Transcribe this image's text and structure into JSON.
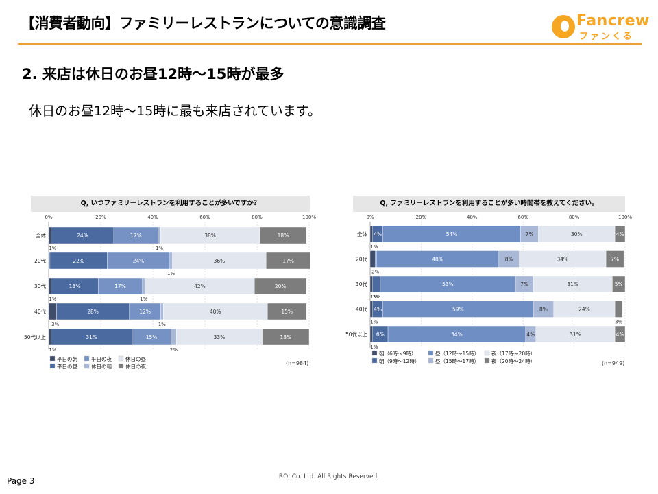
{
  "header": {
    "title": "【消費者動向】ファミリーレストランについての意識調査",
    "logo_text": "Fancrew",
    "logo_sub": "ファンくる"
  },
  "section": {
    "title": "2.  来店は休日のお昼12時～15時が最多",
    "lead": "休日のお昼12時～15時に最も来店されています。"
  },
  "footer": {
    "page": "Page 3",
    "copyright": "ROI Co. Ltd. All Rights Reserved."
  },
  "chart_data": [
    {
      "type": "bar",
      "orientation": "horizontal-stacked-100",
      "title": "Q, いつファミリーレストランを利用することが多いですか？",
      "categories": [
        "全体",
        "20代",
        "30代",
        "40代",
        "50代以上"
      ],
      "xlim": [
        0,
        100
      ],
      "x_ticks": [
        "0%",
        "20%",
        "40%",
        "60%",
        "80%",
        "100%"
      ],
      "sample": "(n=984)",
      "series": [
        {
          "name": "平日の朝",
          "color": "#3f4d6b",
          "values": [
            1,
            0.5,
            1,
            3,
            1
          ]
        },
        {
          "name": "平日の昼",
          "color": "#4a6aa0",
          "values": [
            24,
            22,
            18,
            28,
            31
          ]
        },
        {
          "name": "平日の夜",
          "color": "#7692c4",
          "values": [
            17,
            24,
            17,
            12,
            15
          ]
        },
        {
          "name": "休日の朝",
          "color": "#a9b8d6",
          "values": [
            1,
            1,
            1,
            1,
            2
          ]
        },
        {
          "name": "休日の昼",
          "color": "#e2e6ef",
          "values": [
            38,
            36,
            42,
            40,
            33
          ]
        },
        {
          "name": "休日の夜",
          "color": "#7d7d7d",
          "values": [
            18,
            17,
            20,
            15,
            18
          ]
        }
      ],
      "labels": [
        [
          "1%",
          "24%",
          "17%",
          "1%",
          "38%",
          "18%"
        ],
        [
          "",
          "22%",
          "24%",
          "1%",
          "36%",
          "17%"
        ],
        [
          "1%",
          "18%",
          "17%",
          "1%",
          "42%",
          "20%"
        ],
        [
          "3%",
          "28%",
          "12%",
          "1%",
          "40%",
          "15%"
        ],
        [
          "1%",
          "31%",
          "15%",
          "2%",
          "33%",
          "18%"
        ]
      ]
    },
    {
      "type": "bar",
      "orientation": "horizontal-stacked-100",
      "title": "Q, ファミリーレストランを利用することが多い時間帯を教えてください。",
      "categories": [
        "全体",
        "20代",
        "30代",
        "40代",
        "50代以上"
      ],
      "xlim": [
        0,
        100
      ],
      "x_ticks": [
        "0%",
        "20%",
        "40%",
        "60%",
        "80%",
        "100%"
      ],
      "sample": "(n=949)",
      "series": [
        {
          "name": "朝（6時～9時）",
          "color": "#3f4d6b",
          "values": [
            1,
            2,
            1,
            1,
            1
          ]
        },
        {
          "name": "朝（9時～12時）",
          "color": "#4a6aa0",
          "values": [
            4,
            0.5,
            3,
            4,
            6
          ]
        },
        {
          "name": "昼（12時～15時）",
          "color": "#6f8fc4",
          "values": [
            54,
            48,
            53,
            59,
            54
          ]
        },
        {
          "name": "昼（15時～17時）",
          "color": "#a9b8d6",
          "values": [
            7,
            8,
            7,
            8,
            4
          ]
        },
        {
          "name": "夜（17時～20時）",
          "color": "#e2e6ef",
          "values": [
            30,
            34,
            31,
            24,
            31
          ]
        },
        {
          "name": "夜（20時～24時）",
          "color": "#7d7d7d",
          "values": [
            4,
            7,
            5,
            3,
            4
          ]
        }
      ],
      "labels": [
        [
          "1%",
          "4%",
          "54%",
          "7%",
          "30%",
          "4%"
        ],
        [
          "2%",
          "",
          "48%",
          "8%",
          "34%",
          "7%"
        ],
        [
          "1%",
          "3%",
          "53%",
          "7%",
          "31%",
          "5%"
        ],
        [
          "1%",
          "4%",
          "59%",
          "8%",
          "24%",
          "3%"
        ],
        [
          "1%",
          "6%",
          "54%",
          "4%",
          "31%",
          "4%"
        ]
      ]
    }
  ]
}
